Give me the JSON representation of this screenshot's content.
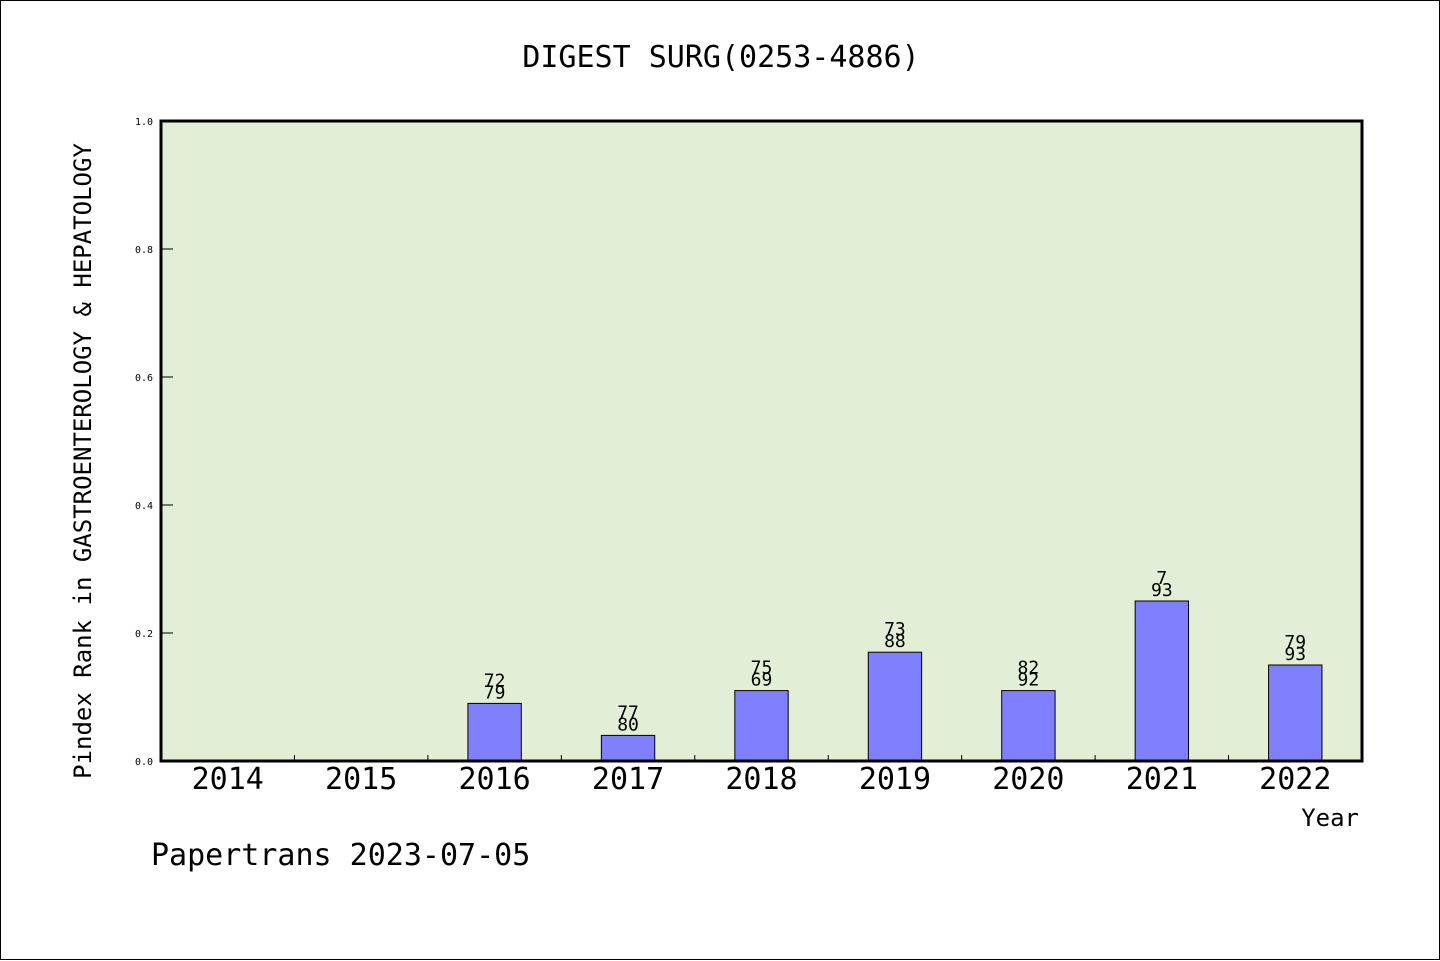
{
  "chart_data": {
    "type": "bar",
    "title": "DIGEST SURG(0253-4886)",
    "xlabel": "Year",
    "ylabel": "Pindex Rank in GASTROENTEROLOGY & HEPATOLOGY",
    "categories": [
      "2014",
      "2015",
      "2016",
      "2017",
      "2018",
      "2019",
      "2020",
      "2021",
      "2022"
    ],
    "values": [
      null,
      null,
      0.09,
      0.04,
      0.11,
      0.17,
      0.11,
      0.25,
      0.15
    ],
    "labels_top": [
      null,
      null,
      "72",
      "77",
      "75",
      "73",
      "82",
      "7",
      "79"
    ],
    "labels_bottom": [
      null,
      null,
      "79",
      "80",
      "69",
      "88",
      "92",
      "93",
      "93"
    ],
    "ylim": [
      0,
      1.0
    ],
    "yticks": [
      "0.0",
      "0.2",
      "0.4",
      "0.6",
      "0.8",
      "1.0"
    ],
    "grid": false,
    "colors": {
      "plot_background": "#e2efd6",
      "bar_fill": "#8080ff",
      "bar_stroke": "#000000"
    }
  },
  "footer": {
    "text": "Papertrans 2023-07-05"
  }
}
